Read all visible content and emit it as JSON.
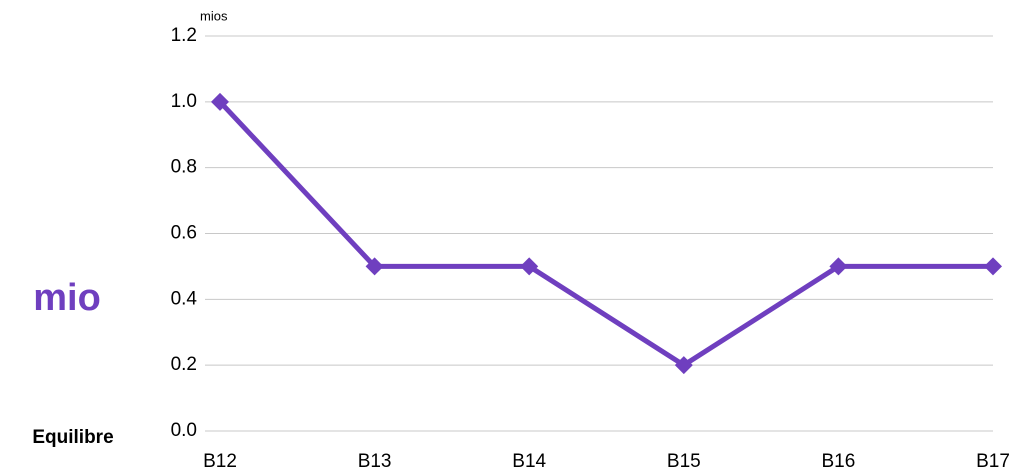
{
  "chart_data": {
    "type": "line",
    "y_unit": "mios",
    "y_label": "mio",
    "annotation": "Equilibre",
    "categories": [
      "B12",
      "B13",
      "B14",
      "B15",
      "B16",
      "B17"
    ],
    "values": [
      1.0,
      0.5,
      0.5,
      0.2,
      0.5,
      0.5
    ],
    "color": "#6f3fbf",
    "ylim": [
      0,
      1.2
    ],
    "yticks": [
      {
        "value": 0,
        "label": "0.0"
      },
      0.2,
      0.4,
      0.6,
      0.8,
      {
        "value": 1,
        "label": "1.0"
      },
      1.2
    ],
    "grid": true
  }
}
